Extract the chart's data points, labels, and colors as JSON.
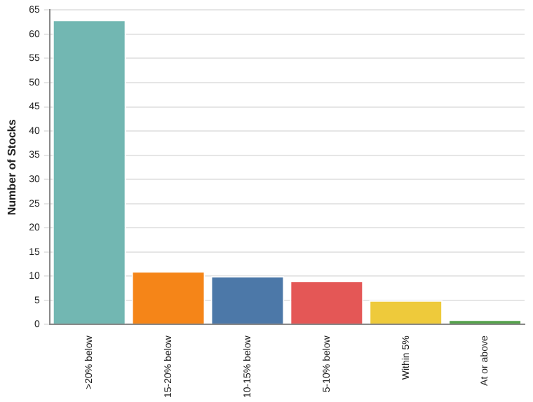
{
  "chart_data": {
    "type": "bar",
    "ylabel": "Number of Stocks",
    "categories": [
      ">20% below",
      "15-20% below",
      "10-15% below",
      "5-10% below",
      "Within 5%",
      "At or above"
    ],
    "values": [
      63,
      11,
      10,
      9,
      5,
      1
    ],
    "colors": [
      "#72b7b2",
      "#f58518",
      "#4c78a8",
      "#e45756",
      "#eeca3b",
      "#54a24b"
    ],
    "ylim": [
      0,
      65
    ],
    "yticks": [
      0,
      5,
      10,
      15,
      20,
      25,
      30,
      35,
      40,
      45,
      50,
      55,
      60,
      65
    ],
    "grid": "y"
  }
}
